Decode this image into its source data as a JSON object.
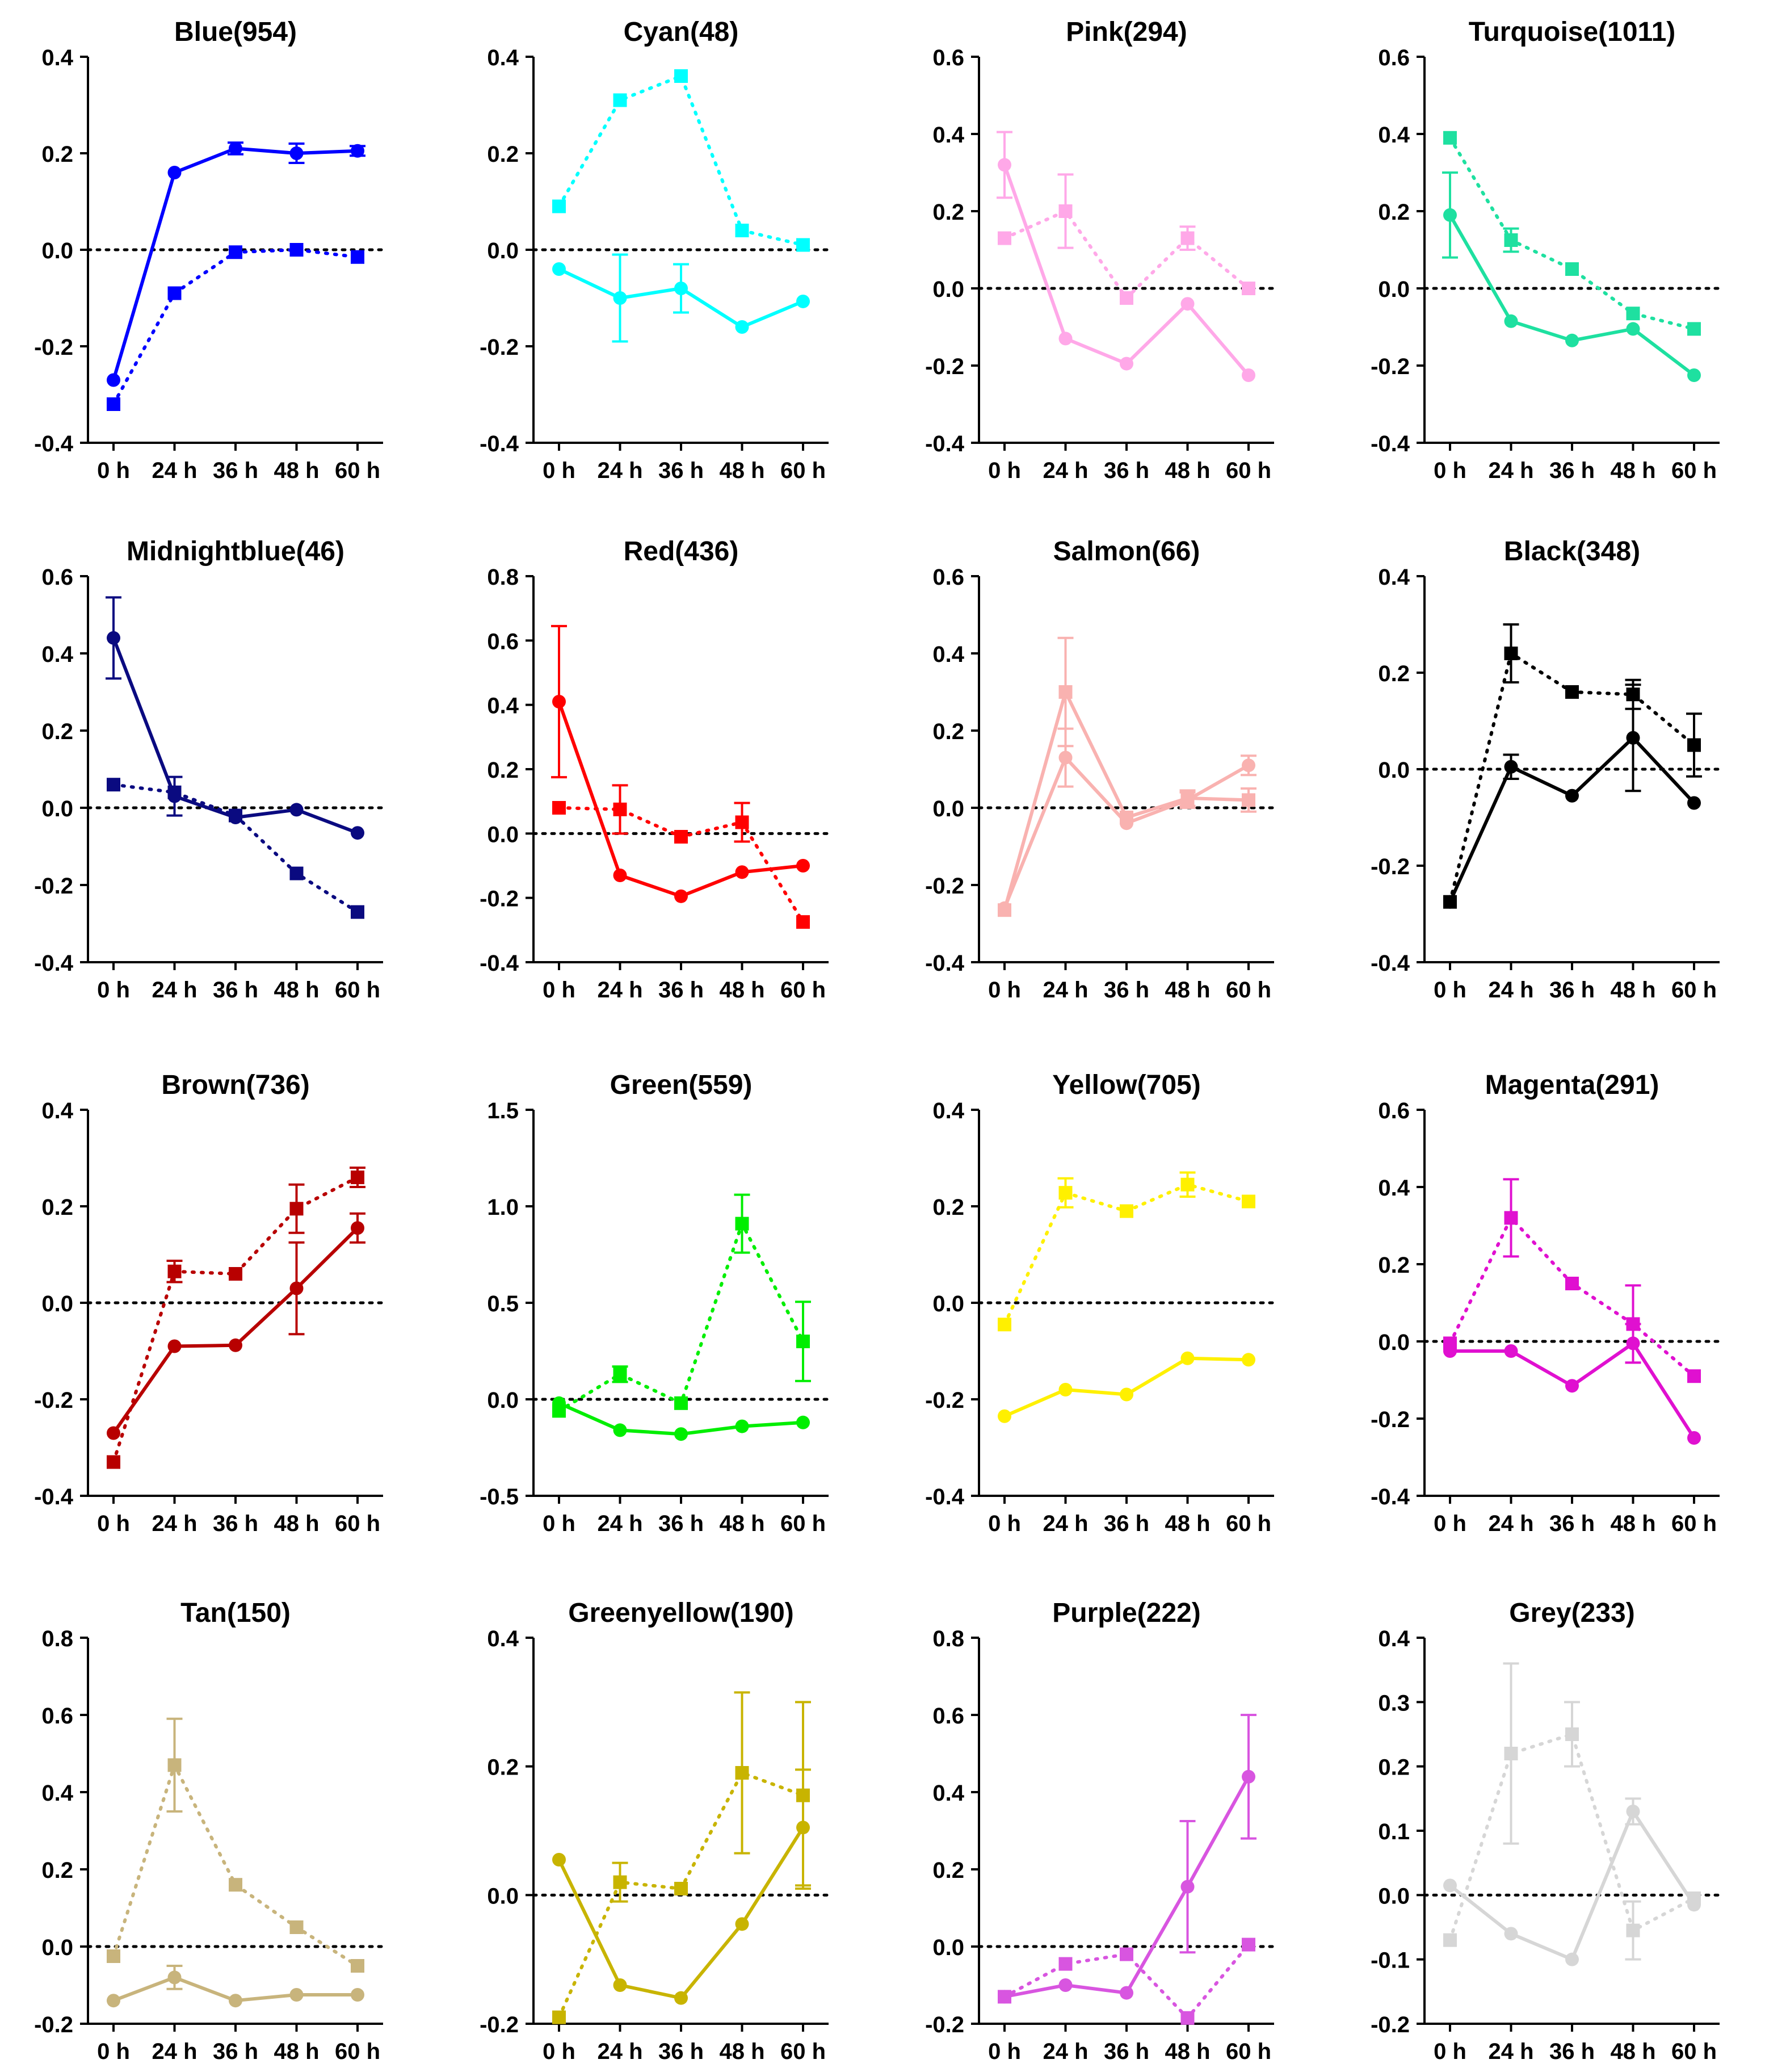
{
  "chart_data": [
    {
      "type": "line",
      "title": "Blue(954)",
      "color": "#0000FF",
      "categories": [
        "0 h",
        "24 h",
        "36 h",
        "48 h",
        "60 h"
      ],
      "ylim": [
        -0.4,
        0.4
      ],
      "yticks": [
        "-0.4",
        "-0.2",
        "0.0",
        "0.2",
        "0.4"
      ],
      "series": [
        {
          "style": "solid",
          "marker": "circle",
          "values": [
            -0.27,
            0.16,
            0.21,
            0.2,
            0.205
          ],
          "error": [
            0,
            0,
            0.012,
            0.02,
            0.01
          ]
        },
        {
          "style": "dotted",
          "marker": "square",
          "values": [
            -0.32,
            -0.09,
            -0.005,
            0.0,
            -0.015
          ],
          "error": [
            0,
            0,
            0,
            0,
            0
          ]
        }
      ]
    },
    {
      "type": "line",
      "title": "Cyan(48)",
      "color": "#00FFFF",
      "categories": [
        "0 h",
        "24 h",
        "36 h",
        "48 h",
        "60 h"
      ],
      "ylim": [
        -0.4,
        0.4
      ],
      "yticks": [
        "-0.4",
        "-0.2",
        "0.0",
        "0.2",
        "0.4"
      ],
      "series": [
        {
          "style": "solid",
          "marker": "circle",
          "values": [
            -0.04,
            -0.1,
            -0.08,
            -0.16,
            -0.107
          ],
          "error": [
            0,
            0.09,
            0.05,
            0,
            0
          ]
        },
        {
          "style": "dotted",
          "marker": "square",
          "values": [
            0.09,
            0.31,
            0.36,
            0.04,
            0.01
          ],
          "error": [
            0,
            0,
            0,
            0,
            0
          ]
        }
      ]
    },
    {
      "type": "line",
      "title": "Pink(294)",
      "color": "#FFA8E8",
      "categories": [
        "0 h",
        "24 h",
        "36 h",
        "48 h",
        "60 h"
      ],
      "ylim": [
        -0.4,
        0.6
      ],
      "yticks": [
        "-0.4",
        "-0.2",
        "0.0",
        "0.2",
        "0.4",
        "0.6"
      ],
      "series": [
        {
          "style": "solid",
          "marker": "circle",
          "values": [
            0.32,
            -0.13,
            -0.195,
            -0.04,
            -0.225
          ],
          "error": [
            0.085,
            0,
            0,
            0,
            0
          ]
        },
        {
          "style": "dotted",
          "marker": "square",
          "values": [
            0.13,
            0.2,
            -0.025,
            0.13,
            0.0
          ],
          "error": [
            0,
            0.095,
            0,
            0.03,
            0
          ]
        }
      ]
    },
    {
      "type": "line",
      "title": "Turquoise(1011)",
      "color": "#1EE0A0",
      "categories": [
        "0 h",
        "24 h",
        "36 h",
        "48 h",
        "60 h"
      ],
      "ylim": [
        -0.4,
        0.6
      ],
      "yticks": [
        "-0.4",
        "-0.2",
        "0.0",
        "0.2",
        "0.4",
        "0.6"
      ],
      "series": [
        {
          "style": "solid",
          "marker": "circle",
          "values": [
            0.19,
            -0.085,
            -0.135,
            -0.105,
            -0.225
          ],
          "error": [
            0.11,
            0,
            0,
            0,
            0
          ]
        },
        {
          "style": "dotted",
          "marker": "square",
          "values": [
            0.39,
            0.125,
            0.05,
            -0.065,
            -0.105
          ],
          "error": [
            0,
            0.03,
            0,
            0,
            0
          ]
        }
      ]
    },
    {
      "type": "line",
      "title": "Midnightblue(46)",
      "color": "#0A0A80",
      "categories": [
        "0 h",
        "24 h",
        "36 h",
        "48 h",
        "60 h"
      ],
      "ylim": [
        -0.4,
        0.6
      ],
      "yticks": [
        "-0.4",
        "-0.2",
        "0.0",
        "0.2",
        "0.4",
        "0.6"
      ],
      "series": [
        {
          "style": "solid",
          "marker": "circle",
          "values": [
            0.44,
            0.03,
            -0.025,
            -0.005,
            -0.065
          ],
          "error": [
            0.105,
            0.05,
            0,
            0,
            0
          ]
        },
        {
          "style": "dotted",
          "marker": "square",
          "values": [
            0.06,
            0.04,
            -0.02,
            -0.17,
            -0.27
          ],
          "error": [
            0,
            0,
            0,
            0,
            0
          ]
        }
      ]
    },
    {
      "type": "line",
      "title": "Red(436)",
      "color": "#FF0000",
      "categories": [
        "0 h",
        "24 h",
        "36 h",
        "48 h",
        "60 h"
      ],
      "ylim": [
        -0.4,
        0.8
      ],
      "yticks": [
        "-0.4",
        "-0.2",
        "0.0",
        "0.2",
        "0.4",
        "0.6",
        "0.8"
      ],
      "series": [
        {
          "style": "solid",
          "marker": "circle",
          "values": [
            0.41,
            -0.13,
            -0.195,
            -0.12,
            -0.1
          ],
          "error": [
            0.235,
            0,
            0,
            0,
            0
          ]
        },
        {
          "style": "dotted",
          "marker": "square",
          "values": [
            0.08,
            0.075,
            -0.01,
            0.035,
            -0.275
          ],
          "error": [
            0,
            0.075,
            0,
            0.06,
            0
          ]
        }
      ]
    },
    {
      "type": "line",
      "title": "Salmon(66)",
      "color": "#F9B2B0",
      "categories": [
        "0 h",
        "24 h",
        "36 h",
        "48 h",
        "60 h"
      ],
      "ylim": [
        -0.4,
        0.6
      ],
      "yticks": [
        "-0.4",
        "-0.2",
        "0.0",
        "0.2",
        "0.4",
        "0.6"
      ],
      "series": [
        {
          "style": "solid",
          "marker": "circle",
          "values": [
            -0.26,
            0.13,
            -0.04,
            0.02,
            0.11
          ],
          "error": [
            0,
            0.075,
            0,
            0.02,
            0.025
          ]
        },
        {
          "style": "solid",
          "marker": "square",
          "values": [
            -0.265,
            0.3,
            -0.025,
            0.025,
            0.02
          ],
          "error": [
            0,
            0.14,
            0,
            0.02,
            0.03
          ]
        }
      ]
    },
    {
      "type": "line",
      "title": "Black(348)",
      "color": "#000000",
      "categories": [
        "0 h",
        "24 h",
        "36 h",
        "48 h",
        "60 h"
      ],
      "ylim": [
        -0.4,
        0.4
      ],
      "yticks": [
        "-0.4",
        "-0.2",
        "0.0",
        "0.2",
        "0.4"
      ],
      "series": [
        {
          "style": "solid",
          "marker": "circle",
          "values": [
            -0.275,
            0.005,
            -0.055,
            0.065,
            -0.07
          ],
          "error": [
            0,
            0.025,
            0,
            0.11,
            0
          ]
        },
        {
          "style": "dotted",
          "marker": "square",
          "values": [
            -0.275,
            0.24,
            0.16,
            0.155,
            0.05
          ],
          "error": [
            0,
            0.06,
            0,
            0.03,
            0.065
          ]
        }
      ]
    },
    {
      "type": "line",
      "title": "Brown(736)",
      "color": "#B80000",
      "categories": [
        "0 h",
        "24 h",
        "36 h",
        "48 h",
        "60 h"
      ],
      "ylim": [
        -0.4,
        0.4
      ],
      "yticks": [
        "-0.4",
        "-0.2",
        "0.0",
        "0.2",
        "0.4"
      ],
      "series": [
        {
          "style": "solid",
          "marker": "circle",
          "values": [
            -0.27,
            -0.09,
            -0.088,
            0.03,
            0.155
          ],
          "error": [
            0,
            0,
            0,
            0.095,
            0.03
          ]
        },
        {
          "style": "dotted",
          "marker": "square",
          "values": [
            -0.33,
            0.065,
            0.06,
            0.195,
            0.26
          ],
          "error": [
            0,
            0.022,
            0,
            0.05,
            0.02
          ]
        }
      ]
    },
    {
      "type": "line",
      "title": "Green(559)",
      "color": "#00EE00",
      "categories": [
        "0 h",
        "24 h",
        "36 h",
        "48 h",
        "60 h"
      ],
      "ylim": [
        -0.5,
        1.5
      ],
      "yticks": [
        "-0.5",
        "0.0",
        "0.5",
        "1.0",
        "1.5"
      ],
      "series": [
        {
          "style": "solid",
          "marker": "circle",
          "values": [
            -0.02,
            -0.16,
            -0.18,
            -0.14,
            -0.12
          ],
          "error": [
            0,
            0,
            0,
            0,
            0
          ]
        },
        {
          "style": "dotted",
          "marker": "square",
          "values": [
            -0.06,
            0.13,
            -0.02,
            0.91,
            0.3
          ],
          "error": [
            0,
            0.04,
            0,
            0.15,
            0.205
          ]
        }
      ]
    },
    {
      "type": "line",
      "title": "Yellow(705)",
      "color": "#FFF000",
      "categories": [
        "0 h",
        "24 h",
        "36 h",
        "48 h",
        "60 h"
      ],
      "ylim": [
        -0.4,
        0.4
      ],
      "yticks": [
        "-0.4",
        "-0.2",
        "0.0",
        "0.2",
        "0.4"
      ],
      "series": [
        {
          "style": "solid",
          "marker": "circle",
          "values": [
            -0.235,
            -0.18,
            -0.19,
            -0.115,
            -0.118
          ],
          "error": [
            0,
            0,
            0,
            0,
            0
          ]
        },
        {
          "style": "dotted",
          "marker": "square",
          "values": [
            -0.045,
            0.228,
            0.19,
            0.245,
            0.21
          ],
          "error": [
            0,
            0.03,
            0,
            0.025,
            0
          ]
        }
      ]
    },
    {
      "type": "line",
      "title": "Magenta(291)",
      "color": "#E010D0",
      "categories": [
        "0 h",
        "24 h",
        "36 h",
        "48 h",
        "60 h"
      ],
      "ylim": [
        -0.4,
        0.6
      ],
      "yticks": [
        "-0.4",
        "-0.2",
        "0.0",
        "0.2",
        "0.4",
        "0.6"
      ],
      "series": [
        {
          "style": "solid",
          "marker": "circle",
          "values": [
            -0.025,
            -0.025,
            -0.115,
            -0.005,
            -0.25
          ],
          "error": [
            0,
            0,
            0,
            0.05,
            0
          ]
        },
        {
          "style": "dotted",
          "marker": "square",
          "values": [
            -0.005,
            0.32,
            0.15,
            0.045,
            -0.09
          ],
          "error": [
            0,
            0.1,
            0,
            0.1,
            0
          ]
        }
      ]
    },
    {
      "type": "line",
      "title": "Tan(150)",
      "color": "#C8B47C",
      "categories": [
        "0 h",
        "24 h",
        "36 h",
        "48 h",
        "60 h"
      ],
      "ylim": [
        -0.2,
        0.8
      ],
      "yticks": [
        "-0.2",
        "0.0",
        "0.2",
        "0.4",
        "0.6",
        "0.8"
      ],
      "series": [
        {
          "style": "solid",
          "marker": "circle",
          "values": [
            -0.14,
            -0.08,
            -0.14,
            -0.125,
            -0.125
          ],
          "error": [
            0,
            0.03,
            0,
            0,
            0
          ]
        },
        {
          "style": "dotted",
          "marker": "square",
          "values": [
            -0.025,
            0.47,
            0.16,
            0.05,
            -0.05
          ],
          "error": [
            0,
            0.12,
            0,
            0,
            0
          ]
        }
      ]
    },
    {
      "type": "line",
      "title": "Greenyellow(190)",
      "color": "#C8B400",
      "categories": [
        "0 h",
        "24 h",
        "36 h",
        "48 h",
        "60 h"
      ],
      "ylim": [
        -0.2,
        0.4
      ],
      "yticks": [
        "-0.2",
        "0.0",
        "0.2",
        "0.4"
      ],
      "series": [
        {
          "style": "solid",
          "marker": "circle",
          "values": [
            0.055,
            -0.14,
            -0.16,
            -0.045,
            0.105
          ],
          "error": [
            0,
            0,
            0,
            0,
            0.09
          ]
        },
        {
          "style": "dotted",
          "marker": "square",
          "values": [
            -0.19,
            0.02,
            0.01,
            0.19,
            0.155
          ],
          "error": [
            0,
            0.03,
            0,
            0.125,
            0.145
          ]
        }
      ]
    },
    {
      "type": "line",
      "title": "Purple(222)",
      "color": "#D855E0",
      "categories": [
        "0 h",
        "24 h",
        "36 h",
        "48 h",
        "60 h"
      ],
      "ylim": [
        -0.2,
        0.8
      ],
      "yticks": [
        "-0.2",
        "0.0",
        "0.2",
        "0.4",
        "0.6",
        "0.8"
      ],
      "series": [
        {
          "style": "solid",
          "marker": "circle",
          "values": [
            -0.13,
            -0.1,
            -0.12,
            0.155,
            0.44
          ],
          "error": [
            0,
            0,
            0,
            0.17,
            0.16
          ]
        },
        {
          "style": "dotted",
          "marker": "square",
          "values": [
            -0.13,
            -0.045,
            -0.02,
            -0.185,
            0.005
          ],
          "error": [
            0,
            0,
            0,
            0,
            0
          ]
        }
      ]
    },
    {
      "type": "line",
      "title": "Grey(233)",
      "color": "#D6D6D6",
      "categories": [
        "0 h",
        "24 h",
        "36 h",
        "48 h",
        "60 h"
      ],
      "ylim": [
        -0.2,
        0.4
      ],
      "yticks": [
        "-0.2",
        "-0.1",
        "0.0",
        "0.1",
        "0.2",
        "0.3",
        "0.4"
      ],
      "series": [
        {
          "style": "solid",
          "marker": "circle",
          "values": [
            0.015,
            -0.06,
            -0.1,
            0.13,
            -0.015
          ],
          "error": [
            0,
            0,
            0,
            0.02,
            0
          ]
        },
        {
          "style": "dotted",
          "marker": "square",
          "values": [
            -0.07,
            0.22,
            0.25,
            -0.055,
            -0.005
          ],
          "error": [
            0,
            0.14,
            0.05,
            0.045,
            0
          ]
        }
      ]
    }
  ]
}
